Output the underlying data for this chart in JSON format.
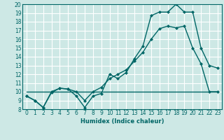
{
  "title": "",
  "xlabel": "Humidex (Indice chaleur)",
  "bg_color": "#cde8e5",
  "line_color": "#006666",
  "grid_color": "#ffffff",
  "xlim": [
    -0.5,
    23.5
  ],
  "ylim": [
    8,
    20
  ],
  "xticks": [
    0,
    1,
    2,
    3,
    4,
    5,
    6,
    7,
    8,
    9,
    10,
    11,
    12,
    13,
    14,
    15,
    16,
    17,
    18,
    19,
    20,
    21,
    22,
    23
  ],
  "yticks": [
    8,
    9,
    10,
    11,
    12,
    13,
    14,
    15,
    16,
    17,
    18,
    19,
    20
  ],
  "line1_x": [
    0,
    1,
    2,
    3,
    4,
    5,
    6,
    7,
    8,
    9,
    10,
    11,
    12,
    13,
    14,
    15,
    16,
    17,
    18,
    19,
    20,
    21,
    22,
    23
  ],
  "line1_y": [
    9.5,
    9.0,
    8.2,
    9.9,
    10.4,
    10.3,
    9.5,
    8.2,
    9.5,
    9.8,
    12.0,
    11.5,
    12.2,
    13.8,
    15.2,
    18.7,
    19.1,
    19.1,
    20.0,
    19.1,
    19.1,
    15.0,
    13.0,
    12.7
  ],
  "line2_x": [
    0,
    1,
    2,
    3,
    4,
    5,
    6,
    7,
    8,
    9,
    10,
    11,
    12,
    13,
    14,
    15,
    16,
    17,
    18,
    19,
    20,
    21,
    22,
    23
  ],
  "line2_y": [
    9.5,
    9.0,
    8.2,
    10.0,
    10.4,
    10.3,
    10.0,
    9.0,
    10.0,
    10.5,
    11.5,
    12.0,
    12.5,
    13.5,
    14.5,
    16.0,
    17.2,
    17.5,
    17.3,
    17.5,
    15.0,
    13.2,
    10.0,
    10.0
  ],
  "line3_x": [
    0,
    23
  ],
  "line3_y": [
    10.0,
    10.0
  ],
  "marker": "D",
  "markersize": 2.5,
  "linewidth": 1.0,
  "label_fontsize": 6,
  "tick_fontsize": 5.5
}
